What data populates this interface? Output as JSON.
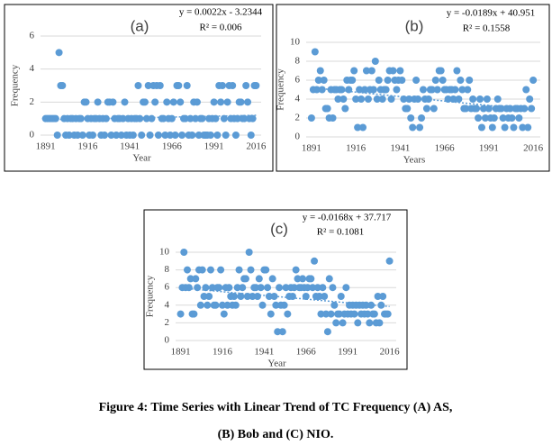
{
  "chart_data": [
    {
      "type": "scatter",
      "panel": "(a)",
      "equation": "y = 0.0022x  - 3.2344",
      "r2": "R² = 0.006",
      "trend": {
        "slope": 0.0022,
        "intercept": -3.2344
      },
      "x_label": "Year",
      "y_label": "Frequency",
      "color": "#5b9bd5",
      "grid": true,
      "xlim": [
        1888,
        2019
      ],
      "xticks": [
        1891,
        1916,
        1941,
        1966,
        1991,
        2016
      ],
      "ylim": [
        0,
        6
      ],
      "yticks": [
        0,
        2,
        4,
        6
      ],
      "x": [
        1891,
        1892,
        1893,
        1894,
        1895,
        1896,
        1897,
        1898,
        1899,
        1900,
        1901,
        1902,
        1903,
        1904,
        1905,
        1906,
        1907,
        1908,
        1909,
        1910,
        1911,
        1912,
        1913,
        1914,
        1915,
        1916,
        1917,
        1918,
        1919,
        1920,
        1921,
        1922,
        1923,
        1924,
        1925,
        1926,
        1927,
        1928,
        1929,
        1930,
        1931,
        1932,
        1933,
        1934,
        1935,
        1936,
        1937,
        1938,
        1939,
        1940,
        1941,
        1942,
        1943,
        1944,
        1945,
        1946,
        1947,
        1948,
        1949,
        1950,
        1951,
        1952,
        1953,
        1954,
        1955,
        1956,
        1957,
        1958,
        1959,
        1960,
        1961,
        1962,
        1963,
        1964,
        1965,
        1966,
        1967,
        1968,
        1969,
        1970,
        1971,
        1972,
        1973,
        1974,
        1975,
        1976,
        1977,
        1978,
        1979,
        1980,
        1981,
        1982,
        1983,
        1984,
        1985,
        1986,
        1987,
        1988,
        1989,
        1990,
        1991,
        1992,
        1993,
        1994,
        1995,
        1996,
        1997,
        1998,
        1999,
        2000,
        2001,
        2002,
        2003,
        2004,
        2005,
        2006,
        2007,
        2008,
        2009,
        2010,
        2011,
        2012,
        2013,
        2014,
        2015,
        2016
      ],
      "values": [
        1,
        1,
        1,
        1,
        1,
        1,
        1,
        0,
        5,
        3,
        3,
        1,
        0,
        1,
        0,
        1,
        1,
        0,
        1,
        0,
        1,
        1,
        0,
        2,
        2,
        1,
        0,
        1,
        0,
        1,
        1,
        2,
        1,
        0,
        1,
        0,
        1,
        2,
        2,
        0,
        2,
        1,
        0,
        1,
        1,
        0,
        1,
        2,
        0,
        1,
        0,
        1,
        0,
        1,
        1,
        3,
        1,
        0,
        2,
        2,
        1,
        3,
        0,
        1,
        3,
        2,
        3,
        0,
        3,
        1,
        1,
        0,
        2,
        1,
        0,
        1,
        2,
        0,
        3,
        3,
        2,
        0,
        1,
        1,
        3,
        0,
        1,
        0,
        2,
        1,
        2,
        0,
        1,
        1,
        0,
        0,
        0,
        1,
        0,
        1,
        2,
        1,
        0,
        3,
        2,
        3,
        1,
        0,
        2,
        3,
        1,
        3,
        1,
        0,
        1,
        2,
        2,
        1,
        1,
        3,
        2,
        1,
        0,
        1,
        3,
        3
      ]
    },
    {
      "type": "scatter",
      "panel": "(b)",
      "equation": "y = -0.0189x  + 40.951",
      "r2": "R² = 0.1558",
      "trend": {
        "slope": -0.0189,
        "intercept": 40.951
      },
      "x_label": "Years",
      "y_label": "Frequency",
      "color": "#5b9bd5",
      "grid": true,
      "xlim": [
        1888,
        2020
      ],
      "xticks": [
        1891,
        1916,
        1941,
        1966,
        1991,
        2016
      ],
      "ylim": [
        0,
        10
      ],
      "yticks": [
        0,
        2,
        4,
        6,
        8,
        10
      ],
      "x": [
        1891,
        1892,
        1893,
        1894,
        1895,
        1896,
        1897,
        1898,
        1899,
        1900,
        1901,
        1902,
        1903,
        1904,
        1905,
        1906,
        1907,
        1908,
        1909,
        1910,
        1911,
        1912,
        1913,
        1914,
        1915,
        1916,
        1917,
        1918,
        1919,
        1920,
        1921,
        1922,
        1923,
        1924,
        1925,
        1926,
        1927,
        1928,
        1929,
        1930,
        1931,
        1932,
        1933,
        1934,
        1935,
        1936,
        1937,
        1938,
        1939,
        1940,
        1941,
        1942,
        1943,
        1944,
        1945,
        1946,
        1947,
        1948,
        1949,
        1950,
        1951,
        1952,
        1953,
        1954,
        1955,
        1956,
        1957,
        1958,
        1959,
        1960,
        1961,
        1962,
        1963,
        1964,
        1965,
        1966,
        1967,
        1968,
        1969,
        1970,
        1971,
        1972,
        1973,
        1974,
        1975,
        1976,
        1977,
        1978,
        1979,
        1980,
        1981,
        1982,
        1983,
        1984,
        1985,
        1986,
        1987,
        1988,
        1989,
        1990,
        1991,
        1992,
        1993,
        1994,
        1995,
        1996,
        1997,
        1998,
        1999,
        2000,
        2001,
        2002,
        2003,
        2004,
        2005,
        2006,
        2007,
        2008,
        2009,
        2010,
        2011,
        2012,
        2013,
        2014,
        2015,
        2016
      ],
      "values": [
        2,
        5,
        9,
        5,
        6,
        7,
        5,
        6,
        3,
        3,
        2,
        5,
        2,
        5,
        5,
        4,
        5,
        5,
        4,
        3,
        6,
        5,
        6,
        6,
        7,
        4,
        1,
        5,
        4,
        1,
        5,
        7,
        4,
        5,
        7,
        5,
        8,
        4,
        6,
        5,
        4,
        5,
        5,
        6,
        7,
        4,
        7,
        6,
        5,
        6,
        7,
        6,
        4,
        3,
        3,
        4,
        2,
        1,
        4,
        6,
        4,
        1,
        2,
        5,
        4,
        3,
        4,
        5,
        5,
        3,
        6,
        5,
        7,
        7,
        6,
        5,
        5,
        4,
        5,
        5,
        4,
        5,
        7,
        4,
        6,
        5,
        3,
        3,
        5,
        6,
        3,
        4,
        3,
        3,
        2,
        4,
        1,
        3,
        2,
        4,
        3,
        2,
        1,
        2,
        3,
        4,
        3,
        3,
        2,
        1,
        3,
        2,
        3,
        2,
        1,
        3,
        3,
        2,
        3,
        1,
        3,
        5,
        1,
        4,
        3,
        6
      ]
    },
    {
      "type": "scatter",
      "panel": "(c)",
      "equation": "y = -0.0168x  + 37.717",
      "r2": "R² = 0.1081",
      "trend": {
        "slope": -0.0168,
        "intercept": 37.717
      },
      "x_label": "Year",
      "y_label": "Frequency",
      "color": "#5b9bd5",
      "grid": true,
      "xlim": [
        1888,
        2020
      ],
      "xticks": [
        1891,
        1916,
        1941,
        1966,
        1991,
        2016
      ],
      "ylim": [
        0,
        10
      ],
      "yticks": [
        0,
        2,
        4,
        6,
        8,
        10
      ],
      "x": [
        1891,
        1892,
        1893,
        1894,
        1895,
        1896,
        1897,
        1898,
        1899,
        1900,
        1901,
        1902,
        1903,
        1904,
        1905,
        1906,
        1907,
        1908,
        1909,
        1910,
        1911,
        1912,
        1913,
        1914,
        1915,
        1916,
        1917,
        1918,
        1919,
        1920,
        1921,
        1922,
        1923,
        1924,
        1925,
        1926,
        1927,
        1928,
        1929,
        1930,
        1931,
        1932,
        1933,
        1934,
        1935,
        1936,
        1937,
        1938,
        1939,
        1940,
        1941,
        1942,
        1943,
        1944,
        1945,
        1946,
        1947,
        1948,
        1949,
        1950,
        1951,
        1952,
        1953,
        1954,
        1955,
        1956,
        1957,
        1958,
        1959,
        1960,
        1961,
        1962,
        1963,
        1964,
        1965,
        1966,
        1967,
        1968,
        1969,
        1970,
        1971,
        1972,
        1973,
        1974,
        1975,
        1976,
        1977,
        1978,
        1979,
        1980,
        1981,
        1982,
        1983,
        1984,
        1985,
        1986,
        1987,
        1988,
        1989,
        1990,
        1991,
        1992,
        1993,
        1994,
        1995,
        1996,
        1997,
        1998,
        1999,
        2000,
        2001,
        2002,
        2003,
        2004,
        2005,
        2006,
        2007,
        2008,
        2009,
        2010,
        2011,
        2012,
        2013,
        2014,
        2015,
        2016
      ],
      "values": [
        3,
        6,
        10,
        6,
        8,
        6,
        7,
        3,
        3,
        7,
        6,
        8,
        4,
        8,
        5,
        6,
        4,
        5,
        8,
        6,
        4,
        4,
        6,
        6,
        8,
        4,
        3,
        6,
        4,
        6,
        5,
        4,
        5,
        4,
        6,
        8,
        5,
        6,
        7,
        7,
        5,
        10,
        8,
        5,
        6,
        6,
        5,
        7,
        6,
        4,
        8,
        8,
        6,
        5,
        3,
        7,
        5,
        4,
        1,
        6,
        4,
        1,
        4,
        6,
        3,
        5,
        6,
        5,
        6,
        8,
        7,
        6,
        6,
        7,
        6,
        5,
        6,
        7,
        7,
        6,
        9,
        5,
        6,
        5,
        3,
        6,
        5,
        3,
        1,
        7,
        3,
        6,
        4,
        2,
        3,
        3,
        5,
        2,
        3,
        6,
        3,
        4,
        3,
        4,
        3,
        4,
        2,
        4,
        3,
        4,
        3,
        4,
        3,
        2,
        4,
        3,
        3,
        2,
        5,
        2,
        4,
        5,
        3,
        3,
        3,
        9
      ]
    }
  ],
  "caption": [
    "Figure 4: Time Series with Linear Trend of TC Frequency (A) AS,",
    "(B) Bob and (C) NIO."
  ]
}
